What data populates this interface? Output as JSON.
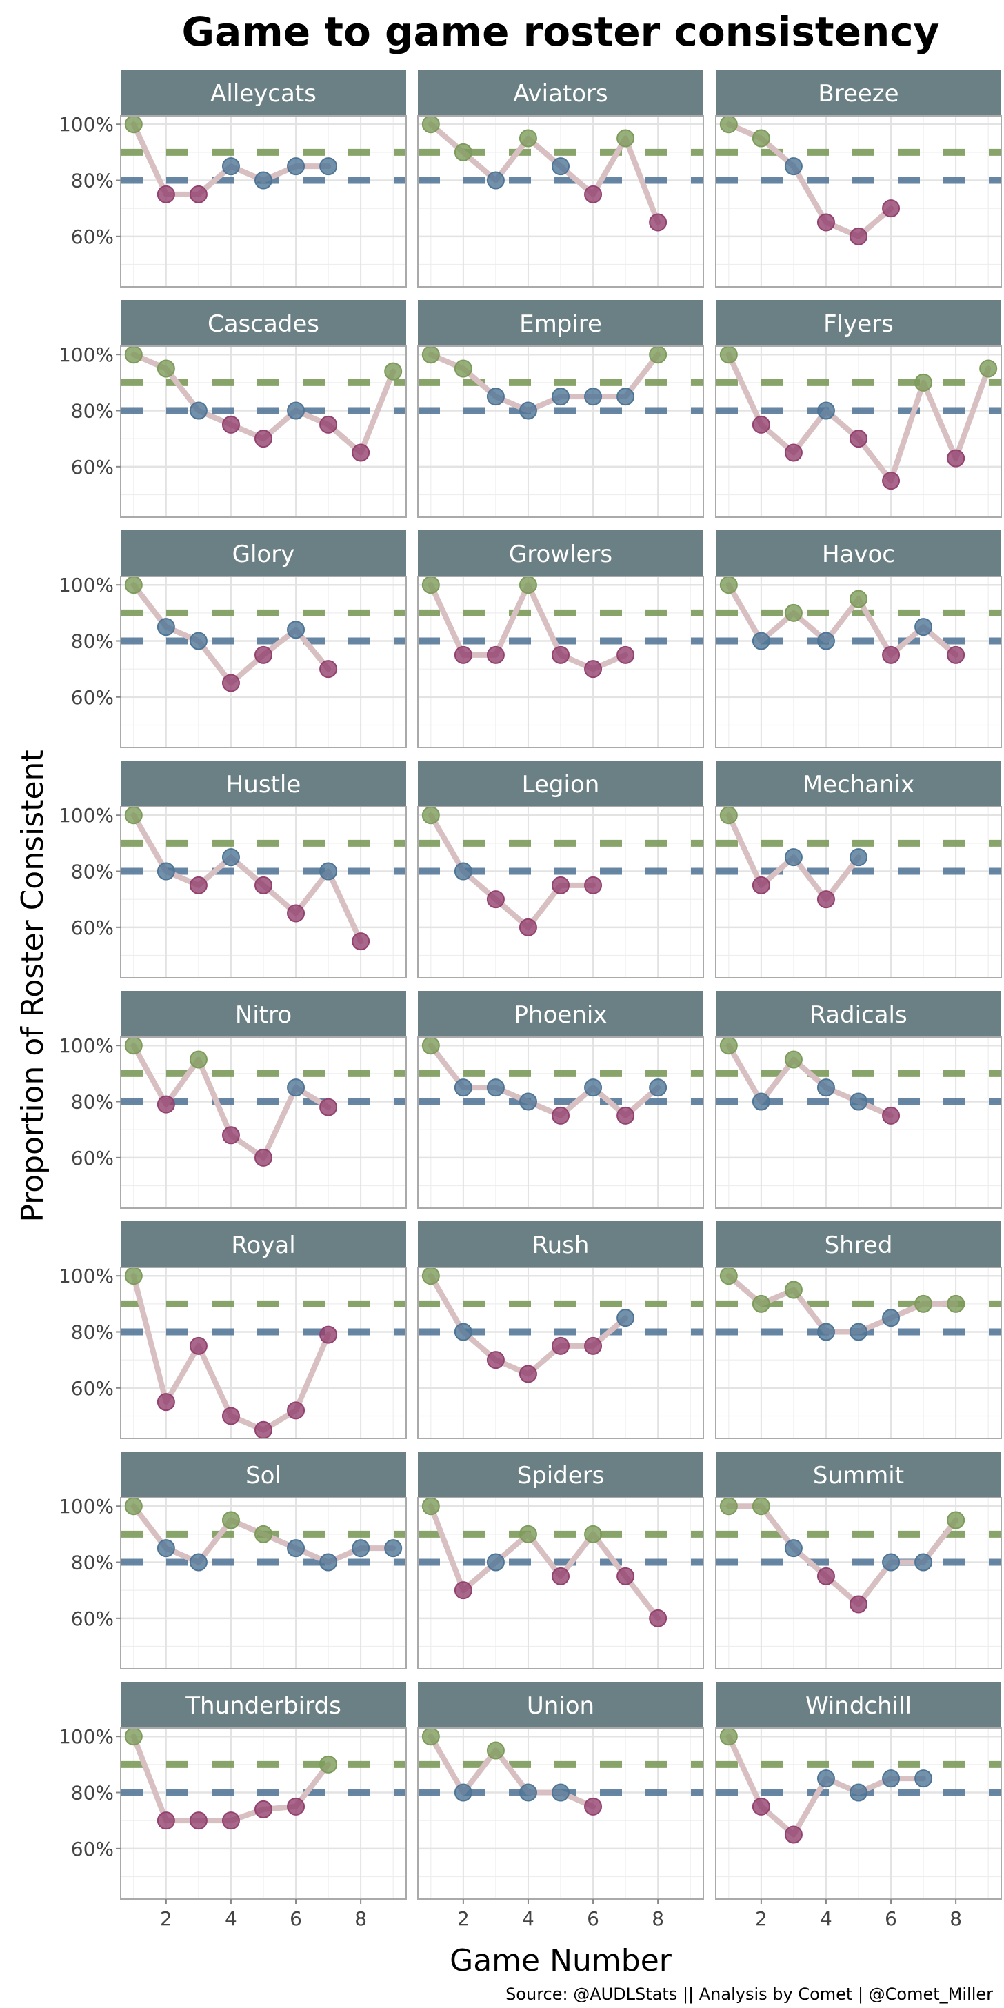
{
  "chart_data": {
    "type": "line",
    "title": "Game to game roster consistency",
    "xlabel": "Game Number",
    "ylabel": "Proportion of Roster Consistent",
    "caption": "Source: @AUDLStats || Analysis by Comet | @Comet_Miller",
    "xlim": [
      0.6,
      9.4
    ],
    "ylim": [
      42,
      103
    ],
    "x_ticks": [
      2,
      4,
      6,
      8
    ],
    "x_tick_labels": [
      "2",
      "4",
      "6",
      "8"
    ],
    "y_ticks": [
      60,
      80,
      100
    ],
    "y_tick_labels": [
      "60%",
      "80%",
      "100%"
    ],
    "grid": true,
    "reference_lines": [
      {
        "value": 90,
        "color": "#7d9b5a",
        "style": "dashed"
      },
      {
        "value": 80,
        "color": "#56799a",
        "style": "dashed"
      }
    ],
    "color_rule": [
      {
        "min": 90,
        "color": "#7d9b5a"
      },
      {
        "min": 80,
        "color": "#4f7596"
      },
      {
        "min": 0,
        "color": "#93416e"
      }
    ],
    "colors": {
      "strip": "#6b8084",
      "line": "#d8bfc1",
      "panel_border": "#aaaaaa",
      "grid": "#e3e3e3"
    },
    "panels": [
      {
        "team": "Alleycats",
        "values": [
          100,
          75,
          75,
          85,
          80,
          85,
          85
        ]
      },
      {
        "team": "Aviators",
        "values": [
          100,
          90,
          80,
          95,
          85,
          75,
          95,
          65
        ]
      },
      {
        "team": "Breeze",
        "values": [
          100,
          95,
          85,
          65,
          60,
          70
        ]
      },
      {
        "team": "Cascades",
        "values": [
          100,
          95,
          80,
          75,
          70,
          80,
          75,
          65,
          94
        ]
      },
      {
        "team": "Empire",
        "values": [
          100,
          95,
          85,
          80,
          85,
          85,
          85,
          100
        ]
      },
      {
        "team": "Flyers",
        "values": [
          100,
          75,
          65,
          80,
          70,
          55,
          90,
          63,
          95
        ]
      },
      {
        "team": "Glory",
        "values": [
          100,
          85,
          80,
          65,
          75,
          84,
          70
        ]
      },
      {
        "team": "Growlers",
        "values": [
          100,
          75,
          75,
          100,
          75,
          70,
          75
        ]
      },
      {
        "team": "Havoc",
        "values": [
          100,
          80,
          90,
          80,
          95,
          75,
          85,
          75
        ]
      },
      {
        "team": "Hustle",
        "values": [
          100,
          80,
          75,
          85,
          75,
          65,
          80,
          55
        ]
      },
      {
        "team": "Legion",
        "values": [
          100,
          80,
          70,
          60,
          75,
          75
        ]
      },
      {
        "team": "Mechanix",
        "values": [
          100,
          75,
          85,
          70,
          85
        ]
      },
      {
        "team": "Nitro",
        "values": [
          100,
          79,
          95,
          68,
          60,
          85,
          78
        ]
      },
      {
        "team": "Phoenix",
        "values": [
          100,
          85,
          85,
          80,
          75,
          85,
          75,
          85
        ]
      },
      {
        "team": "Radicals",
        "values": [
          100,
          80,
          95,
          85,
          80,
          75
        ]
      },
      {
        "team": "Royal",
        "values": [
          100,
          55,
          75,
          50,
          45,
          52,
          79
        ]
      },
      {
        "team": "Rush",
        "values": [
          100,
          80,
          70,
          65,
          75,
          75,
          85
        ]
      },
      {
        "team": "Shred",
        "values": [
          100,
          90,
          95,
          80,
          80,
          85,
          90,
          90
        ]
      },
      {
        "team": "Sol",
        "values": [
          100,
          85,
          80,
          95,
          90,
          85,
          80,
          85,
          85
        ]
      },
      {
        "team": "Spiders",
        "values": [
          100,
          70,
          80,
          90,
          75,
          90,
          75,
          60
        ]
      },
      {
        "team": "Summit",
        "values": [
          100,
          100,
          85,
          75,
          65,
          80,
          80,
          95
        ]
      },
      {
        "team": "Thunderbirds",
        "values": [
          100,
          70,
          70,
          70,
          74,
          75,
          90
        ]
      },
      {
        "team": "Union",
        "values": [
          100,
          80,
          95,
          80,
          80,
          75
        ]
      },
      {
        "team": "Windchill",
        "values": [
          100,
          75,
          65,
          85,
          80,
          85,
          85
        ]
      }
    ]
  }
}
